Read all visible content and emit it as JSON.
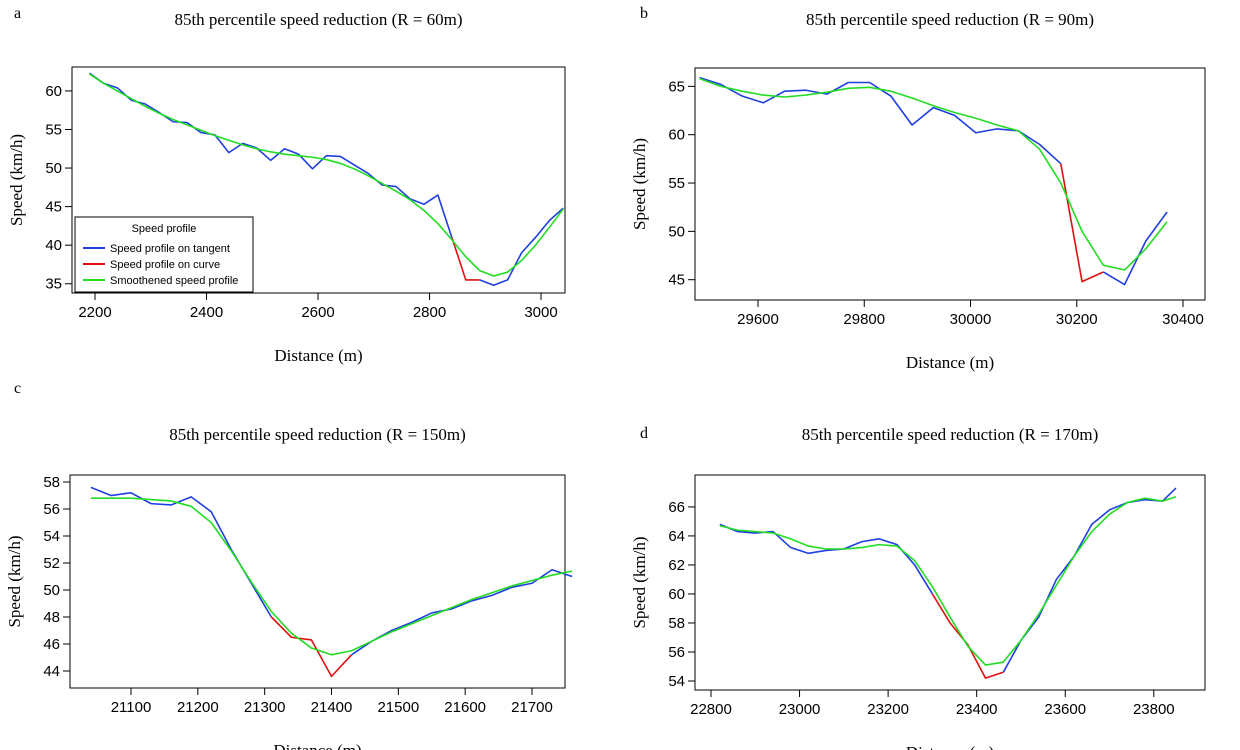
{
  "chart_data": [
    {
      "type": "line",
      "panel_label": "a",
      "title": "85th percentile speed reduction (R = 60m)",
      "x_label": "Distance (m)",
      "y_label": "Speed (km/h)",
      "legend": true,
      "legend_title": "Speed profile",
      "x": [
        2190,
        2215,
        2240,
        2265,
        2290,
        2315,
        2340,
        2365,
        2390,
        2415,
        2440,
        2465,
        2490,
        2515,
        2540,
        2565,
        2590,
        2615,
        2640,
        2665,
        2690,
        2715,
        2740,
        2765,
        2790,
        2815,
        2840,
        2865,
        2890,
        2915,
        2940,
        2965,
        2990,
        3015,
        3040
      ],
      "series": [
        {
          "name": "Speed profile on tangent",
          "color": "#1f3fe0",
          "values": [
            62.3,
            61.0,
            60.4,
            58.8,
            58.3,
            57.2,
            56.0,
            55.9,
            54.6,
            54.3,
            52.0,
            53.2,
            52.6,
            51.0,
            52.5,
            51.8,
            49.9,
            51.6,
            51.5,
            50.4,
            49.3,
            47.8,
            47.6,
            46.0,
            45.3,
            46.5,
            41.0,
            null,
            35.5,
            34.8,
            35.5,
            39.0,
            41.0,
            43.2,
            44.8
          ]
        },
        {
          "name": "Speed profile on curve",
          "color": "#e01010",
          "values": [
            null,
            null,
            null,
            null,
            null,
            null,
            null,
            null,
            null,
            null,
            null,
            null,
            null,
            null,
            null,
            null,
            null,
            null,
            null,
            null,
            null,
            null,
            null,
            null,
            null,
            null,
            41.0,
            35.5,
            35.5,
            null,
            null,
            null,
            null,
            null,
            null
          ]
        },
        {
          "name": "Smoothened speed profile",
          "color": "#22dd22",
          "values": [
            62.2,
            61.0,
            60.0,
            59.0,
            58.0,
            57.1,
            56.3,
            55.6,
            54.9,
            54.2,
            53.6,
            53.0,
            52.5,
            52.1,
            51.8,
            51.6,
            51.4,
            51.1,
            50.6,
            49.9,
            49.0,
            48.0,
            47.0,
            45.9,
            44.5,
            42.8,
            40.7,
            38.5,
            36.7,
            36.0,
            36.5,
            38.0,
            40.0,
            42.3,
            44.7
          ]
        }
      ],
      "xlim": [
        2158.7,
        3043
      ],
      "ylim": [
        33.8,
        63.1
      ],
      "xticks": [
        2200,
        2400,
        2600,
        2800,
        3000
      ],
      "yticks": [
        35,
        40,
        45,
        50,
        55,
        60
      ]
    },
    {
      "type": "line",
      "panel_label": "b",
      "title": "85th percentile speed reduction (R = 90m)",
      "x_label": "Distance (m)",
      "y_label": "Speed (km/h)",
      "x": [
        29490,
        29530,
        29570,
        29610,
        29650,
        29690,
        29730,
        29770,
        29810,
        29850,
        29890,
        29930,
        29970,
        30010,
        30050,
        30090,
        30130,
        30170,
        30210,
        30250,
        30290,
        30330,
        30370
      ],
      "series": [
        {
          "color": "#1f3fe0",
          "values": [
            65.9,
            65.2,
            64.0,
            63.3,
            64.5,
            64.6,
            64.2,
            65.4,
            65.4,
            64.0,
            61.0,
            62.8,
            62.0,
            60.2,
            60.6,
            60.4,
            59.0,
            57.0,
            null,
            45.8,
            44.5,
            49.0,
            52.0
          ]
        },
        {
          "color": "#e01010",
          "values": [
            null,
            null,
            null,
            null,
            null,
            null,
            null,
            null,
            null,
            null,
            null,
            null,
            null,
            null,
            null,
            null,
            null,
            57.0,
            44.8,
            45.8,
            null,
            null,
            null
          ]
        },
        {
          "color": "#22dd22",
          "values": [
            65.8,
            65.0,
            64.5,
            64.1,
            63.9,
            64.1,
            64.4,
            64.8,
            64.9,
            64.5,
            63.8,
            63.0,
            62.3,
            61.7,
            61.0,
            60.4,
            58.5,
            55.0,
            50.0,
            46.5,
            46.0,
            48.2,
            51.0
          ]
        }
      ],
      "xlim": [
        29481.4,
        30441.4
      ],
      "ylim": [
        42.9,
        66.9
      ],
      "xticks": [
        29600,
        29800,
        30000,
        30200,
        30400
      ],
      "yticks": [
        45,
        50,
        55,
        60,
        65
      ]
    },
    {
      "type": "line",
      "panel_label": "c",
      "title": "85th percentile speed reduction (R = 150m)",
      "x_label": "Distance (m)",
      "y_label": "Speed (km/h)",
      "x": [
        21040,
        21070,
        21100,
        21130,
        21160,
        21190,
        21220,
        21250,
        21280,
        21310,
        21340,
        21370,
        21400,
        21430,
        21460,
        21490,
        21520,
        21550,
        21580,
        21610,
        21640,
        21670,
        21700,
        21730,
        21760
      ],
      "series": [
        {
          "color": "#1f3fe0",
          "values": [
            57.6,
            57.0,
            57.2,
            56.4,
            56.3,
            56.9,
            55.8,
            53.0,
            50.5,
            48.0,
            null,
            null,
            null,
            45.2,
            46.2,
            47.0,
            47.6,
            48.3,
            48.6,
            49.2,
            49.6,
            50.2,
            50.5,
            51.5,
            51.0
          ]
        },
        {
          "color": "#e01010",
          "values": [
            null,
            null,
            null,
            null,
            null,
            null,
            null,
            null,
            null,
            48.0,
            46.5,
            46.3,
            43.6,
            45.2,
            null,
            null,
            null,
            null,
            null,
            null,
            null,
            null,
            null,
            null,
            null
          ]
        },
        {
          "color": "#22dd22",
          "values": [
            56.8,
            56.8,
            56.8,
            56.7,
            56.6,
            56.2,
            55.0,
            52.9,
            50.6,
            48.4,
            46.8,
            45.7,
            45.2,
            45.5,
            46.2,
            46.9,
            47.5,
            48.1,
            48.7,
            49.3,
            49.8,
            50.3,
            50.7,
            51.1,
            51.4
          ]
        }
      ],
      "xlim": [
        21008.7,
        21749.4
      ],
      "ylim": [
        42.74,
        58.52
      ],
      "xticks": [
        21100,
        21200,
        21300,
        21400,
        21500,
        21600,
        21700
      ],
      "yticks": [
        44,
        46,
        48,
        50,
        52,
        54,
        56,
        58
      ]
    },
    {
      "type": "line",
      "panel_label": "d",
      "title": "85th percentile speed reduction (R = 170m)",
      "x_label": "Distance (m)",
      "y_label": "Speed (km/h)",
      "x": [
        22820,
        22860,
        22900,
        22940,
        22980,
        23020,
        23060,
        23100,
        23140,
        23180,
        23220,
        23260,
        23300,
        23340,
        23380,
        23420,
        23460,
        23500,
        23540,
        23580,
        23620,
        23660,
        23700,
        23740,
        23780,
        23820,
        23850
      ],
      "series": [
        {
          "color": "#1f3fe0",
          "values": [
            64.8,
            64.3,
            64.2,
            64.3,
            63.2,
            62.8,
            63.0,
            63.1,
            63.6,
            63.8,
            63.4,
            62.0,
            60.0,
            null,
            null,
            null,
            54.6,
            56.8,
            58.4,
            61.0,
            62.6,
            64.8,
            65.8,
            66.3,
            66.5,
            66.4,
            67.3
          ]
        },
        {
          "color": "#e01010",
          "values": [
            null,
            null,
            null,
            null,
            null,
            null,
            null,
            null,
            null,
            null,
            null,
            null,
            60.0,
            58.0,
            56.5,
            54.2,
            54.6,
            null,
            null,
            null,
            null,
            null,
            null,
            null,
            null,
            null,
            null
          ]
        },
        {
          "color": "#22dd22",
          "values": [
            64.7,
            64.4,
            64.3,
            64.2,
            63.8,
            63.3,
            63.1,
            63.1,
            63.2,
            63.4,
            63.3,
            62.3,
            60.5,
            58.4,
            56.4,
            55.1,
            55.3,
            56.8,
            58.6,
            60.6,
            62.6,
            64.3,
            65.5,
            66.3,
            66.6,
            66.4,
            66.7
          ]
        }
      ],
      "xlim": [
        22763.9,
        23915.6
      ],
      "ylim": [
        53.38,
        68.2
      ],
      "xticks": [
        22800,
        23000,
        23200,
        23400,
        23600,
        23800
      ],
      "yticks": [
        54,
        56,
        58,
        60,
        62,
        64,
        66
      ]
    }
  ]
}
